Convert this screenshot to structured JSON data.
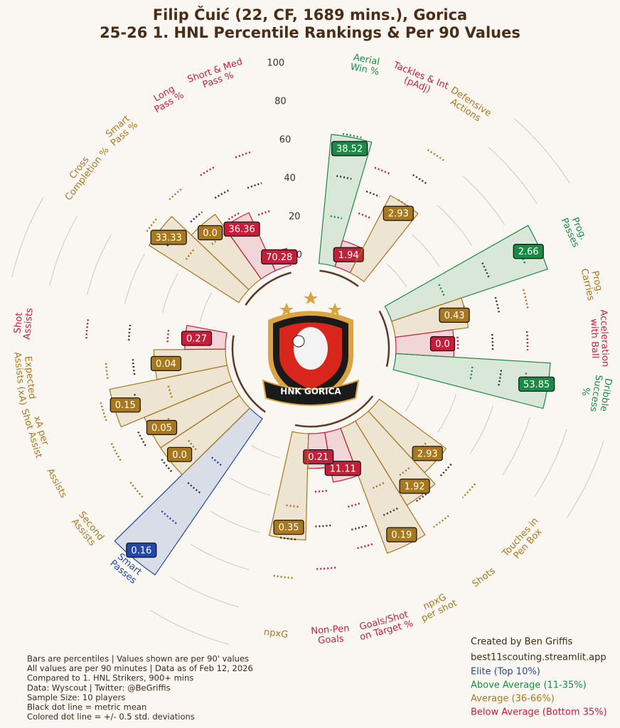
{
  "chart_data": {
    "type": "pizza",
    "title": "Filip Čuić (22, CF, 1689 mins.), Gorica",
    "subtitle": "25-26 1. HNL Percentile Rankings & Per 90 Values",
    "categories": [
      "Aerial\nWin %",
      "Tackles & Int\n(pAdj)",
      "Defensive\nActions",
      "Prog.\nPasses",
      "Prog.\nCarries",
      "Acceleration\nwith Ball",
      "Dribble\nSuccess %",
      "Touches in\nPen Box",
      "Shots",
      "npxG\nper shot",
      "Goals/Shot\non Target %",
      "Non-Pen\nGoals",
      "npxG",
      "Smart\nPasses",
      "Second\nAssists",
      "Assists",
      "xA per\nShot Assist",
      "Expected\nAssists (xA)",
      "Shot\nAssists",
      "Cross\nCompletion %",
      "Smart\nPass %",
      "Long\nPass %",
      "Short & Med\nPass %"
    ],
    "values": [
      67,
      14,
      45,
      85,
      38,
      30,
      80,
      43,
      51,
      69,
      26,
      18,
      55,
      98,
      49,
      49,
      62,
      37,
      21,
      55,
      41,
      33,
      9
    ],
    "colors": [
      "#1a8a46",
      "#c41e3a",
      "#a8781e",
      "#1a8a46",
      "#a8781e",
      "#c41e3a",
      "#1a8a46",
      "#a8781e",
      "#a8781e",
      "#a8781e",
      "#c41e3a",
      "#c41e3a",
      "#a8781e",
      "#2448a8",
      "#a8781e",
      "#a8781e",
      "#a8781e",
      "#a8781e",
      "#c41e3a",
      "#a8781e",
      "#a8781e",
      "#c41e3a",
      "#c41e3a"
    ],
    "per90": {
      "values": [
        38.52,
        1.94,
        2.93,
        2.66,
        0.43,
        0.0,
        53.85,
        2.93,
        1.92,
        0.19,
        11.11,
        0.21,
        0.35,
        0.16,
        0.0,
        0.05,
        0.15,
        0.04,
        0.27,
        33.33,
        0.0,
        36.36,
        70.28
      ],
      "value_labels": [
        "38.52",
        "1.94",
        "2.93",
        "2.66",
        "0.43",
        "0.0",
        "53.85",
        "2.93",
        "1.92",
        "0.19",
        "11.11",
        "0.21",
        "0.35",
        "0.16",
        "0.0",
        "0.05",
        "0.15",
        "0.04",
        "0.27",
        "33.33",
        "0.0",
        "36.36",
        "70.28"
      ]
    },
    "mean": [
      46,
      42,
      60,
      55,
      55,
      50,
      55,
      50,
      52,
      50,
      52,
      48,
      55,
      50,
      52,
      55,
      50,
      48,
      50,
      47,
      46,
      48,
      45
    ],
    "sd_low": [
      25,
      30,
      45,
      30,
      38,
      32,
      40,
      33,
      36,
      35,
      40,
      30,
      38,
      32,
      35,
      38,
      32,
      35,
      30,
      35,
      30,
      35,
      30
    ],
    "sd_high": [
      68,
      55,
      75,
      75,
      70,
      68,
      68,
      66,
      68,
      65,
      62,
      70,
      75,
      70,
      72,
      70,
      68,
      62,
      72,
      60,
      62,
      62,
      62
    ],
    "rlim": [
      0,
      100
    ],
    "rticks": [
      0,
      20,
      40,
      60,
      80,
      100
    ],
    "legend": [
      {
        "name": "Elite (Top 10%)",
        "color": "#2448a8"
      },
      {
        "name": "Above Average (11-35%)",
        "color": "#1a8a46"
      },
      {
        "name": "Average (36-66%)",
        "color": "#a8781e"
      },
      {
        "name": "Below Average (Bottom 35%)",
        "color": "#c41e3a"
      }
    ],
    "credit": [
      "Created by Ben Griffis",
      "best11scouting.streamlit.app"
    ],
    "notes": [
      "Bars are percentiles | Values shown are per 90' values",
      "All values are per 90 minutes | Data as of Feb 12, 2026",
      "Compared to 1. HNL Strikers, 900+ mins",
      "Data: Wyscout | Twitter: @BeGriffis",
      "Sample Size: 10 players",
      "Black dot line = metric mean",
      "Colored dot line = +/- 0.5 std. deviations"
    ]
  },
  "logo": {
    "text": "HNK GORICA"
  }
}
